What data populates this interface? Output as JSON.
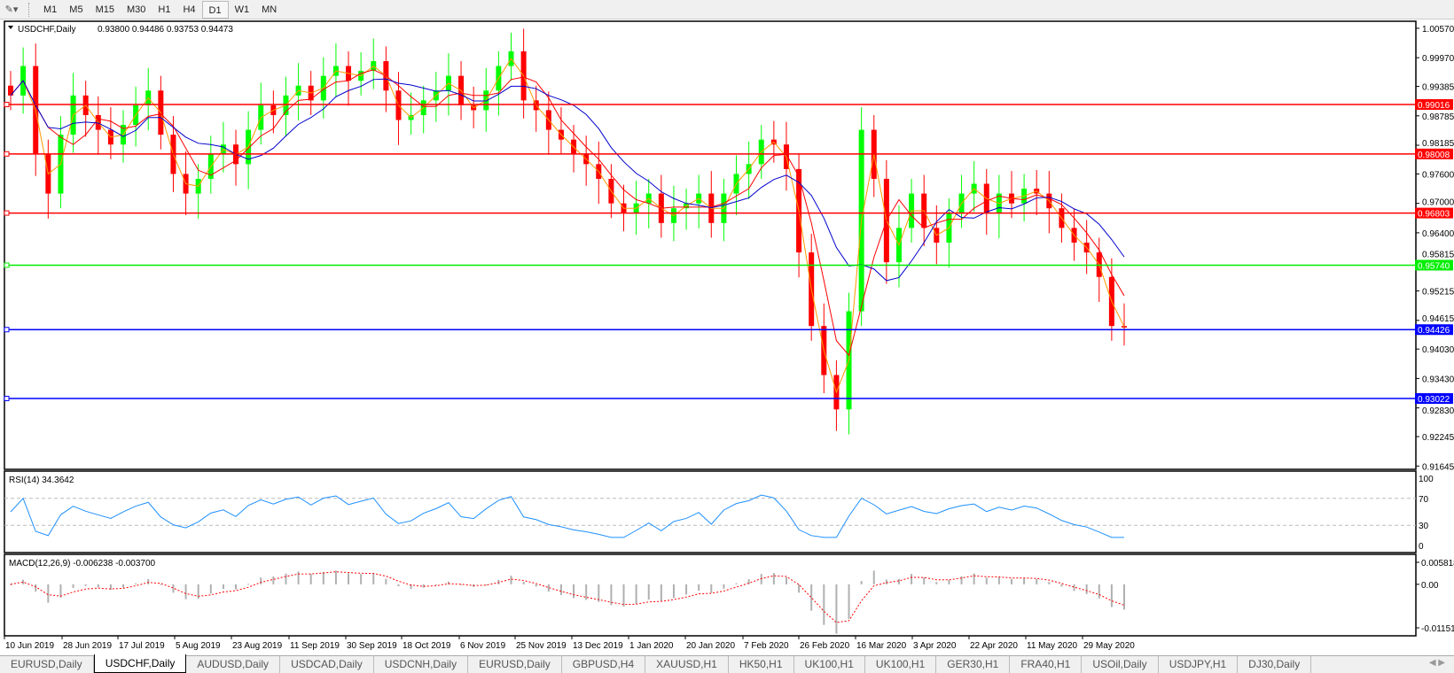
{
  "toolbar": {
    "timeframes": [
      "M1",
      "M5",
      "M15",
      "M30",
      "H1",
      "H4",
      "D1",
      "W1",
      "MN"
    ],
    "active": "D1"
  },
  "main": {
    "title": "USDCHF,Daily",
    "ohlc": "0.93800 0.94486 0.93753 0.94473",
    "price_axis": [
      "1.00570",
      "0.99970",
      "0.99385",
      "0.98785",
      "0.98185",
      "0.97600",
      "0.97000",
      "0.96400",
      "0.95815",
      "0.95215",
      "0.94615",
      "0.94030",
      "0.93430",
      "0.92830",
      "0.92245",
      "0.91645"
    ],
    "levels": [
      {
        "value": "0.99016",
        "color": "#ff0000"
      },
      {
        "value": "0.98008",
        "color": "#ff0000"
      },
      {
        "value": "0.96803",
        "color": "#ff0000"
      },
      {
        "value": "0.95740",
        "color": "#00ee00"
      },
      {
        "value": "0.94426",
        "color": "#0000ff"
      },
      {
        "value": "0.93022",
        "color": "#0000ff"
      }
    ]
  },
  "rsi": {
    "label": "RSI(14) 34.3642",
    "axis": [
      "100",
      "70",
      "30",
      "0"
    ]
  },
  "macd": {
    "label": "MACD(12,26,9) -0.006238 -0.003700",
    "axis": [
      "0.005818",
      "0.00",
      "-0.011514"
    ]
  },
  "dates": [
    "10 Jun 2019",
    "28 Jun 2019",
    "17 Jul 2019",
    "5 Aug 2019",
    "23 Aug 2019",
    "11 Sep 2019",
    "30 Sep 2019",
    "18 Oct 2019",
    "6 Nov 2019",
    "25 Nov 2019",
    "13 Dec 2019",
    "1 Jan 2020",
    "20 Jan 2020",
    "7 Feb 2020",
    "26 Feb 2020",
    "16 Mar 2020",
    "3 Apr 2020",
    "22 Apr 2020",
    "11 May 2020",
    "29 May 2020"
  ],
  "tabs": [
    "EURUSD,Daily",
    "USDCHF,Daily",
    "AUDUSD,Daily",
    "USDCAD,Daily",
    "USDCNH,Daily",
    "EURUSD,Daily",
    "GBPUSD,H4",
    "XAUUSD,H1",
    "HK50,H1",
    "UK100,H1",
    "UK100,H1",
    "GER30,H1",
    "FRA40,H1",
    "USOil,Daily",
    "USDJPY,H1",
    "DJ30,Daily"
  ],
  "active_tab": 1,
  "colors": {
    "bull": "#00ff00",
    "bear": "#ff0000",
    "ma_fast": "#ff9900",
    "ma_mid": "#ff0000",
    "ma_slow": "#0000cc",
    "rsi": "#1e90ff",
    "macd_hist": "#b0b0b0",
    "macd_signal": "#ff0000"
  },
  "chart_data": {
    "type": "candlestick",
    "symbol": "USDCHF",
    "timeframe": "Daily",
    "ylim": [
      0.91645,
      1.0057
    ],
    "closes": [
      0.992,
      0.998,
      0.98,
      0.972,
      0.984,
      0.992,
      0.988,
      0.985,
      0.982,
      0.986,
      0.99,
      0.993,
      0.984,
      0.976,
      0.972,
      0.975,
      0.98,
      0.982,
      0.978,
      0.985,
      0.99,
      0.988,
      0.992,
      0.994,
      0.991,
      0.996,
      0.998,
      0.995,
      0.997,
      0.999,
      0.993,
      0.987,
      0.988,
      0.991,
      0.993,
      0.996,
      0.99,
      0.989,
      0.993,
      0.998,
      1.001,
      0.991,
      0.989,
      0.985,
      0.983,
      0.98,
      0.978,
      0.975,
      0.97,
      0.968,
      0.97,
      0.972,
      0.966,
      0.969,
      0.97,
      0.972,
      0.966,
      0.972,
      0.976,
      0.978,
      0.983,
      0.982,
      0.977,
      0.96,
      0.945,
      0.935,
      0.928,
      0.948,
      0.985,
      0.975,
      0.958,
      0.965,
      0.972,
      0.965,
      0.962,
      0.968,
      0.972,
      0.974,
      0.968,
      0.972,
      0.97,
      0.973,
      0.972,
      0.969,
      0.965,
      0.962,
      0.96,
      0.955,
      0.945,
      0.9447
    ]
  }
}
